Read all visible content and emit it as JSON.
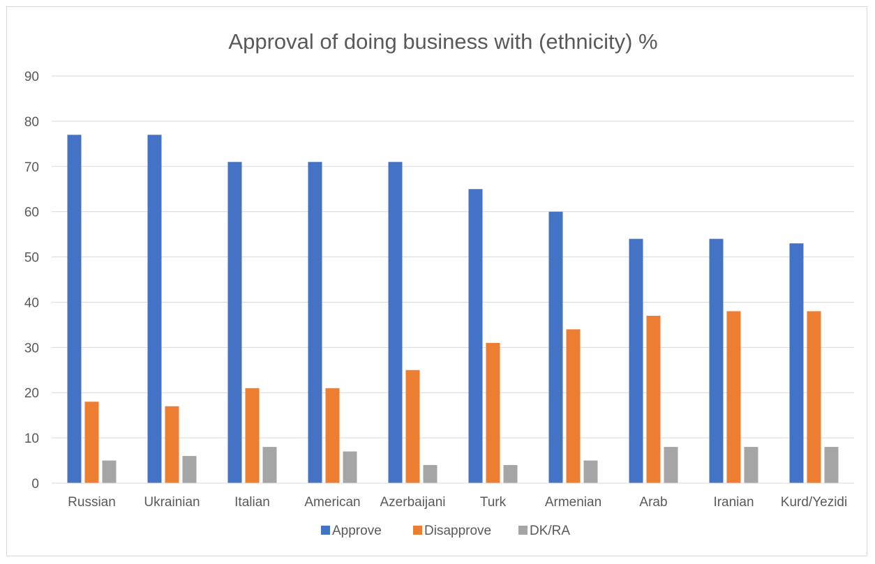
{
  "chart_data": {
    "type": "bar",
    "title": "Approval of doing business with (ethnicity) %",
    "xlabel": "",
    "ylabel": "",
    "ylim": [
      0,
      90
    ],
    "yticks": [
      0,
      10,
      20,
      30,
      40,
      50,
      60,
      70,
      80,
      90
    ],
    "grid": true,
    "legend_position": "bottom",
    "categories": [
      "Russian",
      "Ukrainian",
      "Italian",
      "American",
      "Azerbaijani",
      "Turk",
      "Armenian",
      "Arab",
      "Iranian",
      "Kurd/Yezidi"
    ],
    "series": [
      {
        "name": "Approve",
        "color": "#4472c4",
        "values": [
          77,
          77,
          71,
          71,
          71,
          65,
          60,
          54,
          54,
          53
        ]
      },
      {
        "name": "Disapprove",
        "color": "#ed7d31",
        "values": [
          18,
          17,
          21,
          21,
          25,
          31,
          34,
          37,
          38,
          38
        ]
      },
      {
        "name": "DK/RA",
        "color": "#a5a5a5",
        "values": [
          5,
          6,
          8,
          7,
          4,
          4,
          5,
          8,
          8,
          8
        ]
      }
    ]
  }
}
